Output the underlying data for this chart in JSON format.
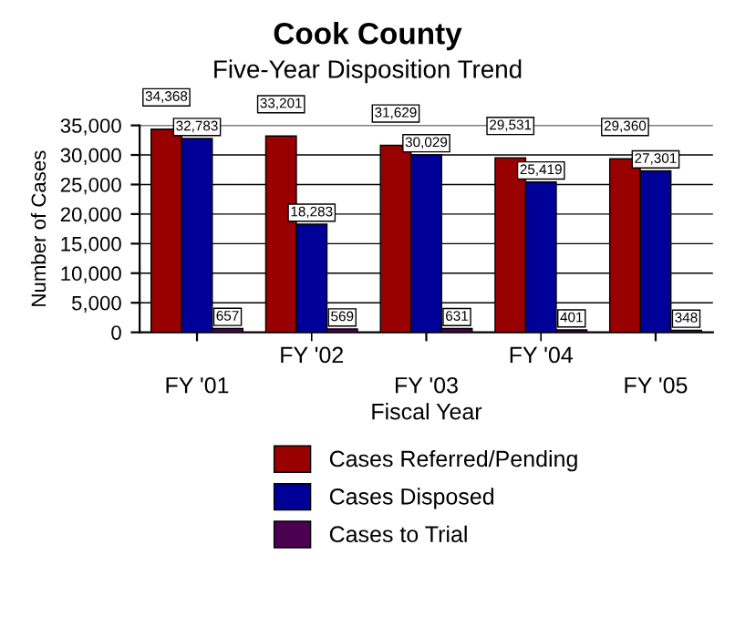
{
  "chart_data": {
    "type": "bar",
    "title": "Cook County",
    "subtitle": "Five-Year Disposition Trend",
    "xlabel": "Fiscal Year",
    "ylabel": "Number of Cases",
    "categories": [
      "FY '01",
      "FY '02",
      "FY '03",
      "FY '04",
      "FY '05"
    ],
    "series": [
      {
        "name": "Cases Referred/Pending",
        "color": "#990000",
        "values": [
          34368,
          33201,
          31629,
          29531,
          29360
        ],
        "value_labels": [
          "34,368",
          "33,201",
          "31,629",
          "29,531",
          "29,360"
        ]
      },
      {
        "name": "Cases Disposed",
        "color": "#000099",
        "values": [
          32783,
          18283,
          30029,
          25419,
          27301
        ],
        "value_labels": [
          "32,783",
          "18,283",
          "30,029",
          "25,419",
          "27,301"
        ]
      },
      {
        "name": "Cases to Trial",
        "color": "#4b0050",
        "values": [
          657,
          569,
          631,
          401,
          348
        ],
        "value_labels": [
          "657",
          "569",
          "631",
          "401",
          "348"
        ]
      }
    ],
    "ylim": [
      0,
      35000
    ],
    "yticks": [
      {
        "value": 0,
        "label": "0"
      },
      {
        "value": 5000,
        "label": "5,000"
      },
      {
        "value": 10000,
        "label": "10,000"
      },
      {
        "value": 15000,
        "label": "15,000"
      },
      {
        "value": 20000,
        "label": "20,000"
      },
      {
        "value": 25000,
        "label": "25,000"
      },
      {
        "value": 30000,
        "label": "30,000"
      },
      {
        "value": 35000,
        "label": "35,000"
      }
    ],
    "grid": "y",
    "legend": "bottom"
  }
}
